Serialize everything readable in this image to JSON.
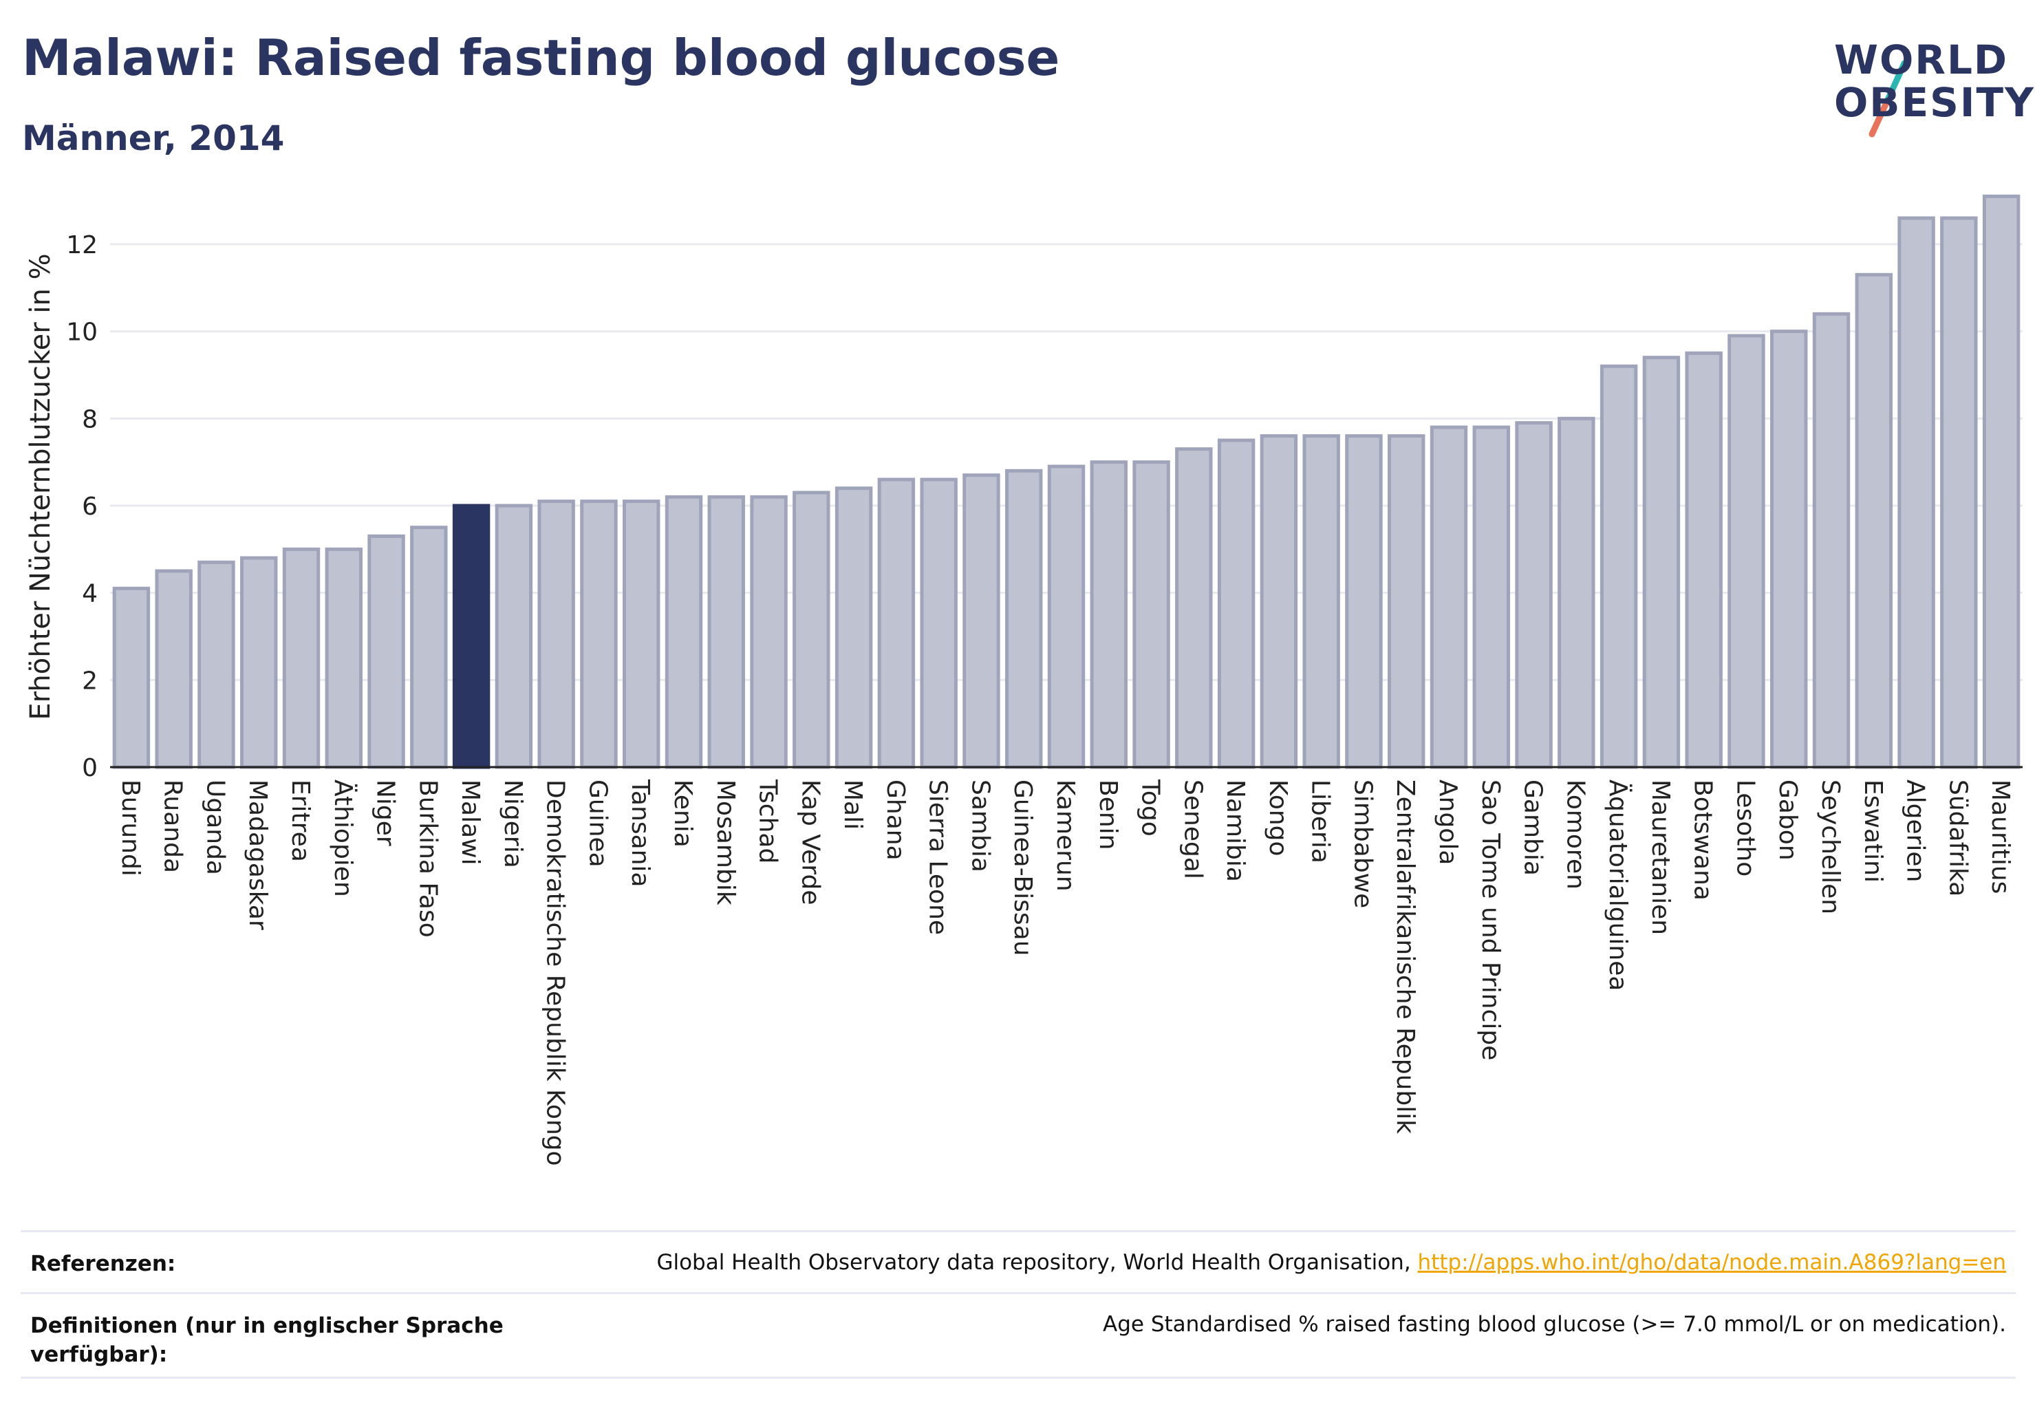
{
  "header": {
    "title": "Malawi: Raised fasting blood glucose",
    "subtitle": "Männer, 2014"
  },
  "logo": {
    "line1": "WORLD",
    "line2": "OBESITY",
    "slash_colors": [
      "#2ab7b3",
      "#e8735a"
    ]
  },
  "colors": {
    "bar": "#bfc3d1",
    "bar_stroke": "#9fa4bb",
    "highlight": "#2b3561",
    "text": "#2b3561",
    "grid": "#e8e9ef",
    "link": "#f0a500"
  },
  "chart_data": {
    "type": "bar",
    "ylabel": "Erhöhter Nüchternblutzucker in %",
    "ylim": [
      0,
      13.5
    ],
    "yticks": [
      0,
      2,
      4,
      6,
      8,
      10,
      12
    ],
    "highlight": "Malawi",
    "grid": true,
    "categories": [
      "Burundi",
      "Ruanda",
      "Uganda",
      "Madagaskar",
      "Eritrea",
      "Äthiopien",
      "Niger",
      "Burkina Faso",
      "Malawi",
      "Nigeria",
      "Demokratische Republik Kongo",
      "Guinea",
      "Tansania",
      "Kenia",
      "Mosambik",
      "Tschad",
      "Kap Verde",
      "Mali",
      "Ghana",
      "Sierra Leone",
      "Sambia",
      "Guinea-Bissau",
      "Kamerun",
      "Benin",
      "Togo",
      "Senegal",
      "Namibia",
      "Kongo",
      "Liberia",
      "Simbabwe",
      "Zentralafrikanische Republik",
      "Angola",
      "Sao Tome und Principe",
      "Gambia",
      "Komoren",
      "Äquatorialguinea",
      "Mauretanien",
      "Botswana",
      "Lesotho",
      "Gabon",
      "Seychellen",
      "Eswatini",
      "Algerien",
      "Südafrika",
      "Mauritius"
    ],
    "values": [
      4.1,
      4.5,
      4.7,
      4.8,
      5.0,
      5.0,
      5.3,
      5.5,
      6.0,
      6.0,
      6.1,
      6.1,
      6.1,
      6.2,
      6.2,
      6.2,
      6.3,
      6.4,
      6.6,
      6.6,
      6.7,
      6.8,
      6.9,
      7.0,
      7.0,
      7.3,
      7.5,
      7.6,
      7.6,
      7.6,
      7.6,
      7.8,
      7.8,
      7.9,
      8.0,
      9.2,
      9.4,
      9.5,
      9.9,
      10.0,
      10.4,
      11.3,
      12.6,
      12.6,
      13.1
    ]
  },
  "references": {
    "ref_label": "Referenzen:",
    "ref_text": "Global Health Observatory data repository, World Health Organisation, ",
    "ref_link": "http://apps.who.int/gho/data/node.main.A869?lang=en",
    "def_label": "Definitionen (nur in englischer Sprache verfügbar):",
    "def_text": "Age Standardised % raised fasting blood glucose (>= 7.0 mmol/L or on medication)."
  }
}
